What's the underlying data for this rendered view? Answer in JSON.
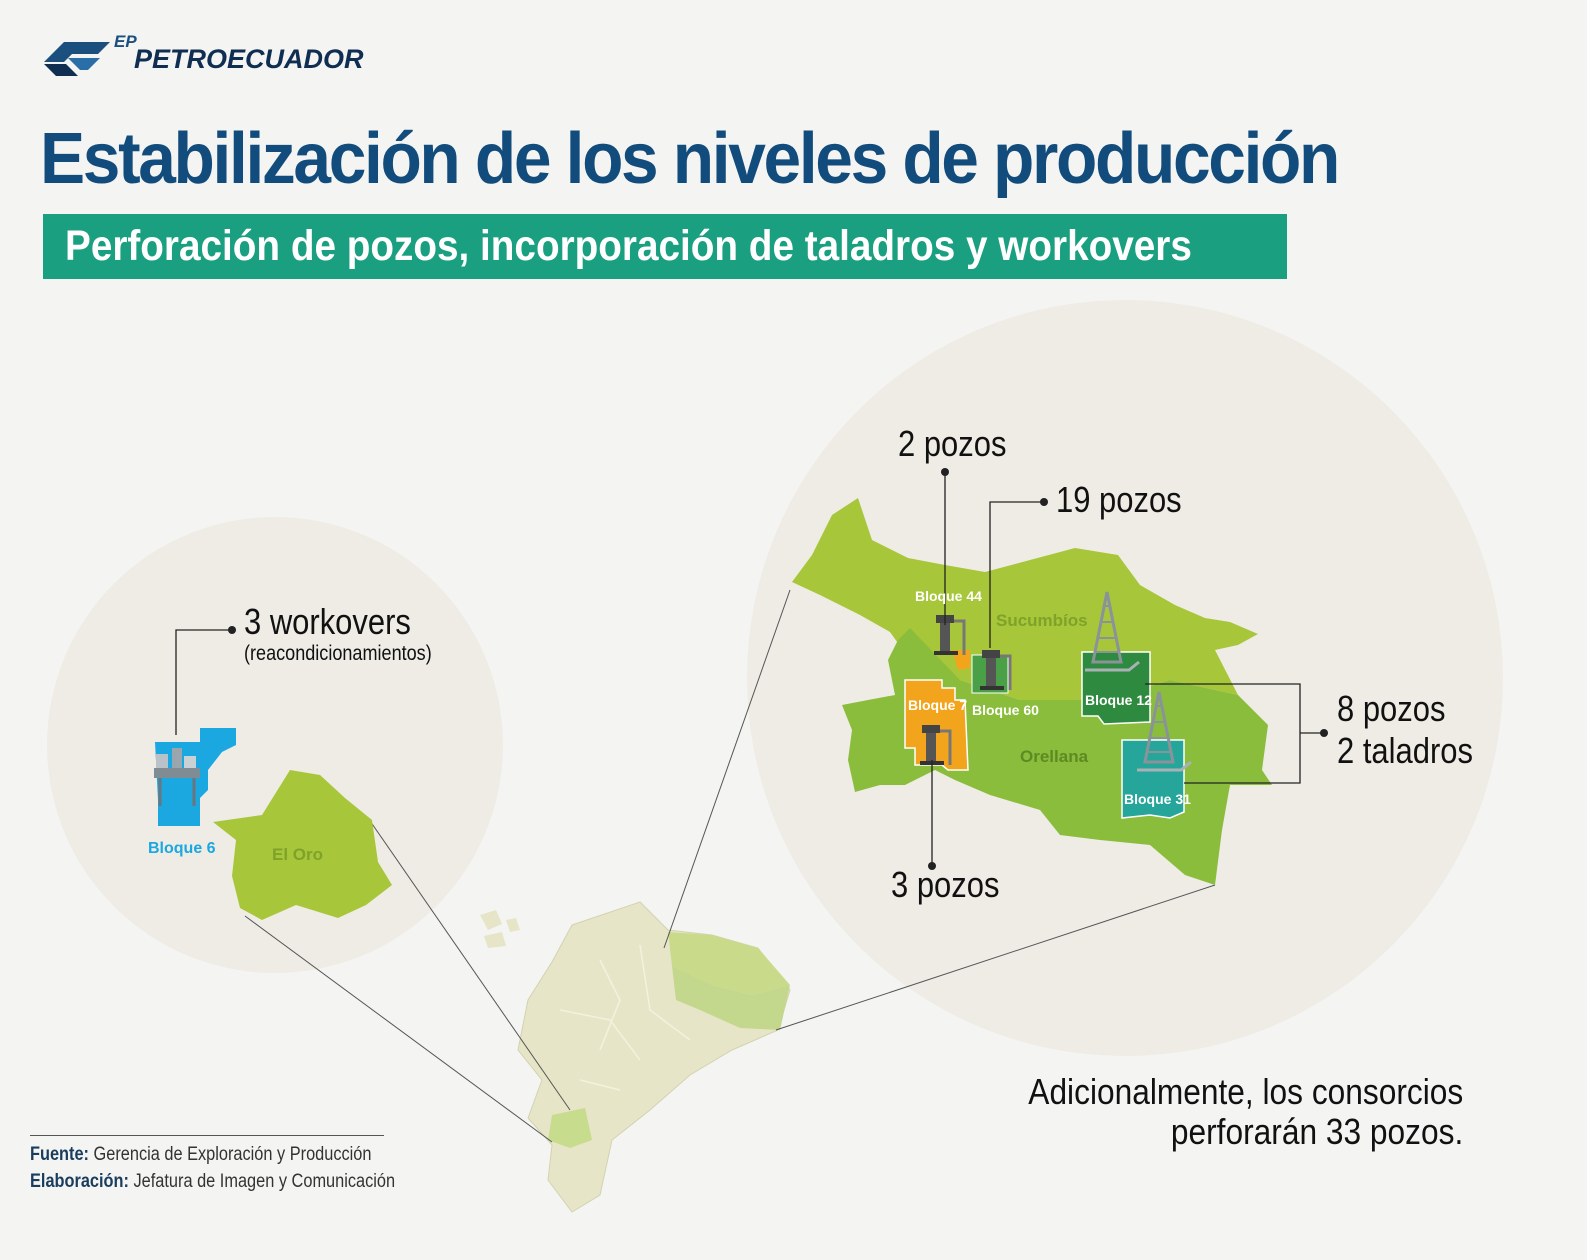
{
  "brand": {
    "ep": "EP",
    "name": "PETROECUADOR"
  },
  "title": "Estabilización de los niveles de producción",
  "subtitle": "Perforación de pozos, incorporación de taladros y workovers",
  "colors": {
    "title_blue": "#124c7c",
    "subtitle_green": "#1aa080",
    "province_light": "#a8c63a",
    "province_mid": "#8bbd3c",
    "bloque6_blue": "#1ba7e0",
    "bloque7_orange": "#f2a51c",
    "bloque12_green": "#2e8a3e",
    "bloque31_teal": "#26a69a"
  },
  "map": {
    "provinces": {
      "el_oro": "El Oro",
      "sucumbios": "Sucumbíos",
      "orellana": "Orellana"
    },
    "blocks": {
      "b6": "Bloque 6",
      "b44": "Bloque 44",
      "b60": "Bloque 60",
      "b7": "Bloque 7",
      "b12": "Bloque 12",
      "b31": "Bloque 31"
    }
  },
  "annotations": {
    "workovers": "3 workovers",
    "workovers_sub": "(reacondicionamientos)",
    "b44_pozos": "2 pozos",
    "b60_pozos": "19 pozos",
    "b7_pozos": "3 pozos",
    "b12_31_pozos": "8 pozos",
    "b12_31_taladros": "2 taladros"
  },
  "note": {
    "line1": "Adicionalmente, los consorcios",
    "line2": "perforarán 33 pozos."
  },
  "footer": {
    "source_label": "Fuente:",
    "source_text": "Gerencia de Exploración y Producción",
    "credit_label": "Elaboración:",
    "credit_text": "Jefatura de Imagen y Comunicación"
  }
}
